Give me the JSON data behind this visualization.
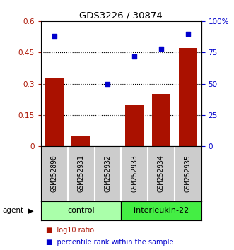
{
  "title": "GDS3226 / 30874",
  "samples": [
    "GSM252890",
    "GSM252931",
    "GSM252932",
    "GSM252933",
    "GSM252934",
    "GSM252935"
  ],
  "bar_values": [
    0.33,
    0.05,
    0.0,
    0.2,
    0.25,
    0.47
  ],
  "scatter_x": [
    0,
    2,
    3,
    4,
    5
  ],
  "scatter_pct": [
    88,
    50,
    72,
    78,
    90
  ],
  "groups": [
    {
      "label": "control",
      "start": 0,
      "end": 3,
      "color": "#aaffaa"
    },
    {
      "label": "interleukin-22",
      "start": 3,
      "end": 6,
      "color": "#44ee44"
    }
  ],
  "bar_color": "#aa1100",
  "scatter_color": "#0000cc",
  "ylim_left": [
    0,
    0.6
  ],
  "ylim_right": [
    0,
    100
  ],
  "yticks_left": [
    0,
    0.15,
    0.3,
    0.45,
    0.6
  ],
  "ytick_labels_left": [
    "0",
    "0.15",
    "0.3",
    "0.45",
    "0.6"
  ],
  "yticks_right": [
    0,
    25,
    50,
    75,
    100
  ],
  "ytick_labels_right": [
    "0",
    "25",
    "50",
    "75",
    "100%"
  ],
  "agent_label": "agent",
  "legend_bar": "log10 ratio",
  "legend_scatter": "percentile rank within the sample",
  "background_color": "#ffffff"
}
